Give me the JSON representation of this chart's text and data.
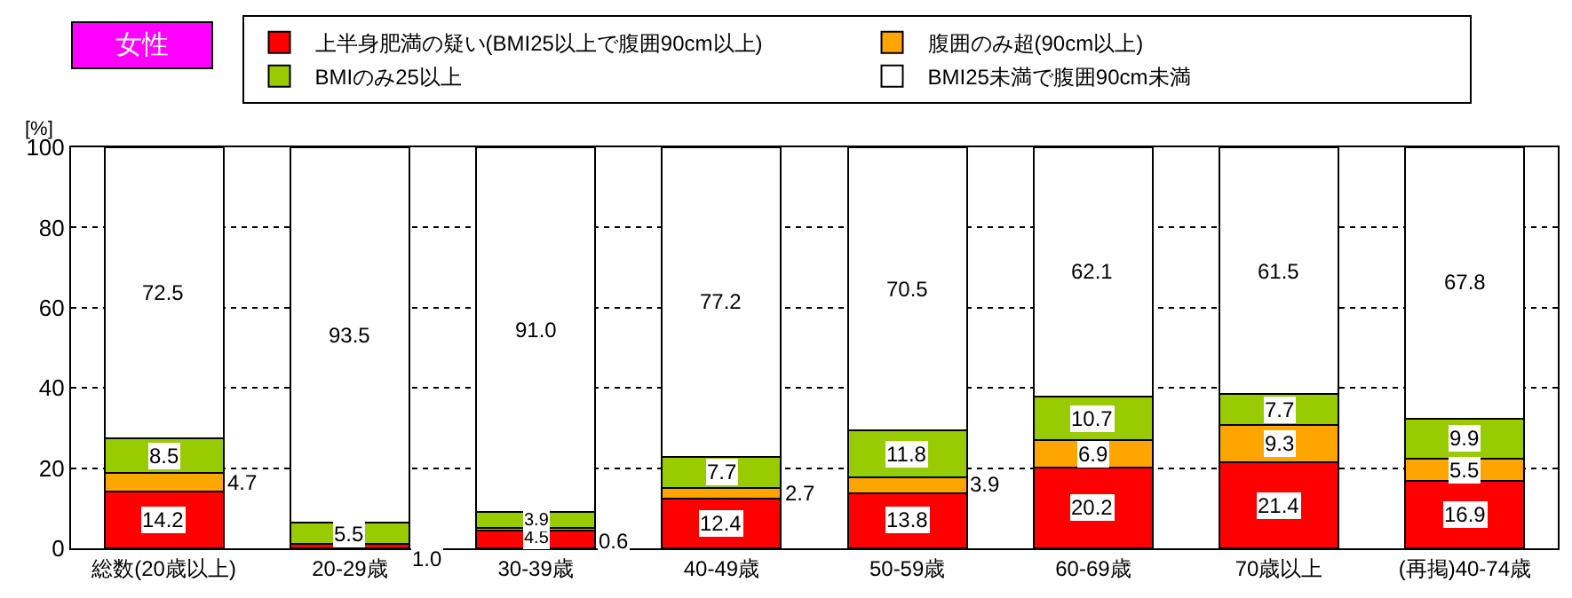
{
  "chart_data": {
    "type": "bar",
    "stacked": true,
    "ylabel": "[%]",
    "annotations": [
      "女性"
    ],
    "categories": [
      "総数(20歳以上)",
      "20-29歳",
      "30-39歳",
      "40-49歳",
      "50-59歳",
      "60-69歳",
      "70歳以上",
      "(再掲)40-74歳"
    ],
    "series": [
      {
        "name": "上半身肥満の疑い(BMI25以上で腹囲90cm以上)",
        "color": "#ff0000",
        "values": [
          14.2,
          1.0,
          4.5,
          12.4,
          13.8,
          20.2,
          21.4,
          16.9
        ],
        "value_labels": [
          "14.2",
          "1.0",
          "4.5",
          "12.4",
          "13.8",
          "20.2",
          "21.4",
          "16.9"
        ]
      },
      {
        "name": "腹囲のみ超(90cm以上)",
        "color": "#ffa500",
        "values": [
          4.7,
          0,
          0.6,
          2.7,
          3.9,
          6.9,
          9.3,
          5.5
        ],
        "value_labels": [
          "4.7",
          null,
          "0.6",
          "2.7",
          "3.9",
          "6.9",
          "9.3",
          "5.5"
        ]
      },
      {
        "name": "BMIのみ25以上",
        "color": "#99cc00",
        "values": [
          8.5,
          5.5,
          3.9,
          7.7,
          11.8,
          10.7,
          7.7,
          9.9
        ],
        "value_labels": [
          "8.5",
          "5.5",
          "3.9",
          "7.7",
          "11.8",
          "10.7",
          "7.7",
          "9.9"
        ]
      },
      {
        "name": "BMI25未満で腹囲90cm未満",
        "color": "#ffffff",
        "values": [
          72.5,
          93.5,
          91.0,
          77.2,
          70.5,
          62.1,
          61.5,
          67.8
        ],
        "value_labels": [
          "72.5",
          "93.5",
          "91.0",
          "77.2",
          "70.5",
          "62.1",
          "61.5",
          "67.8"
        ]
      }
    ],
    "ylim": [
      0,
      100
    ],
    "yticks": [
      0,
      20,
      40,
      60,
      80,
      100
    ],
    "grid": "y",
    "line_style": "dotted",
    "legend": "top"
  }
}
